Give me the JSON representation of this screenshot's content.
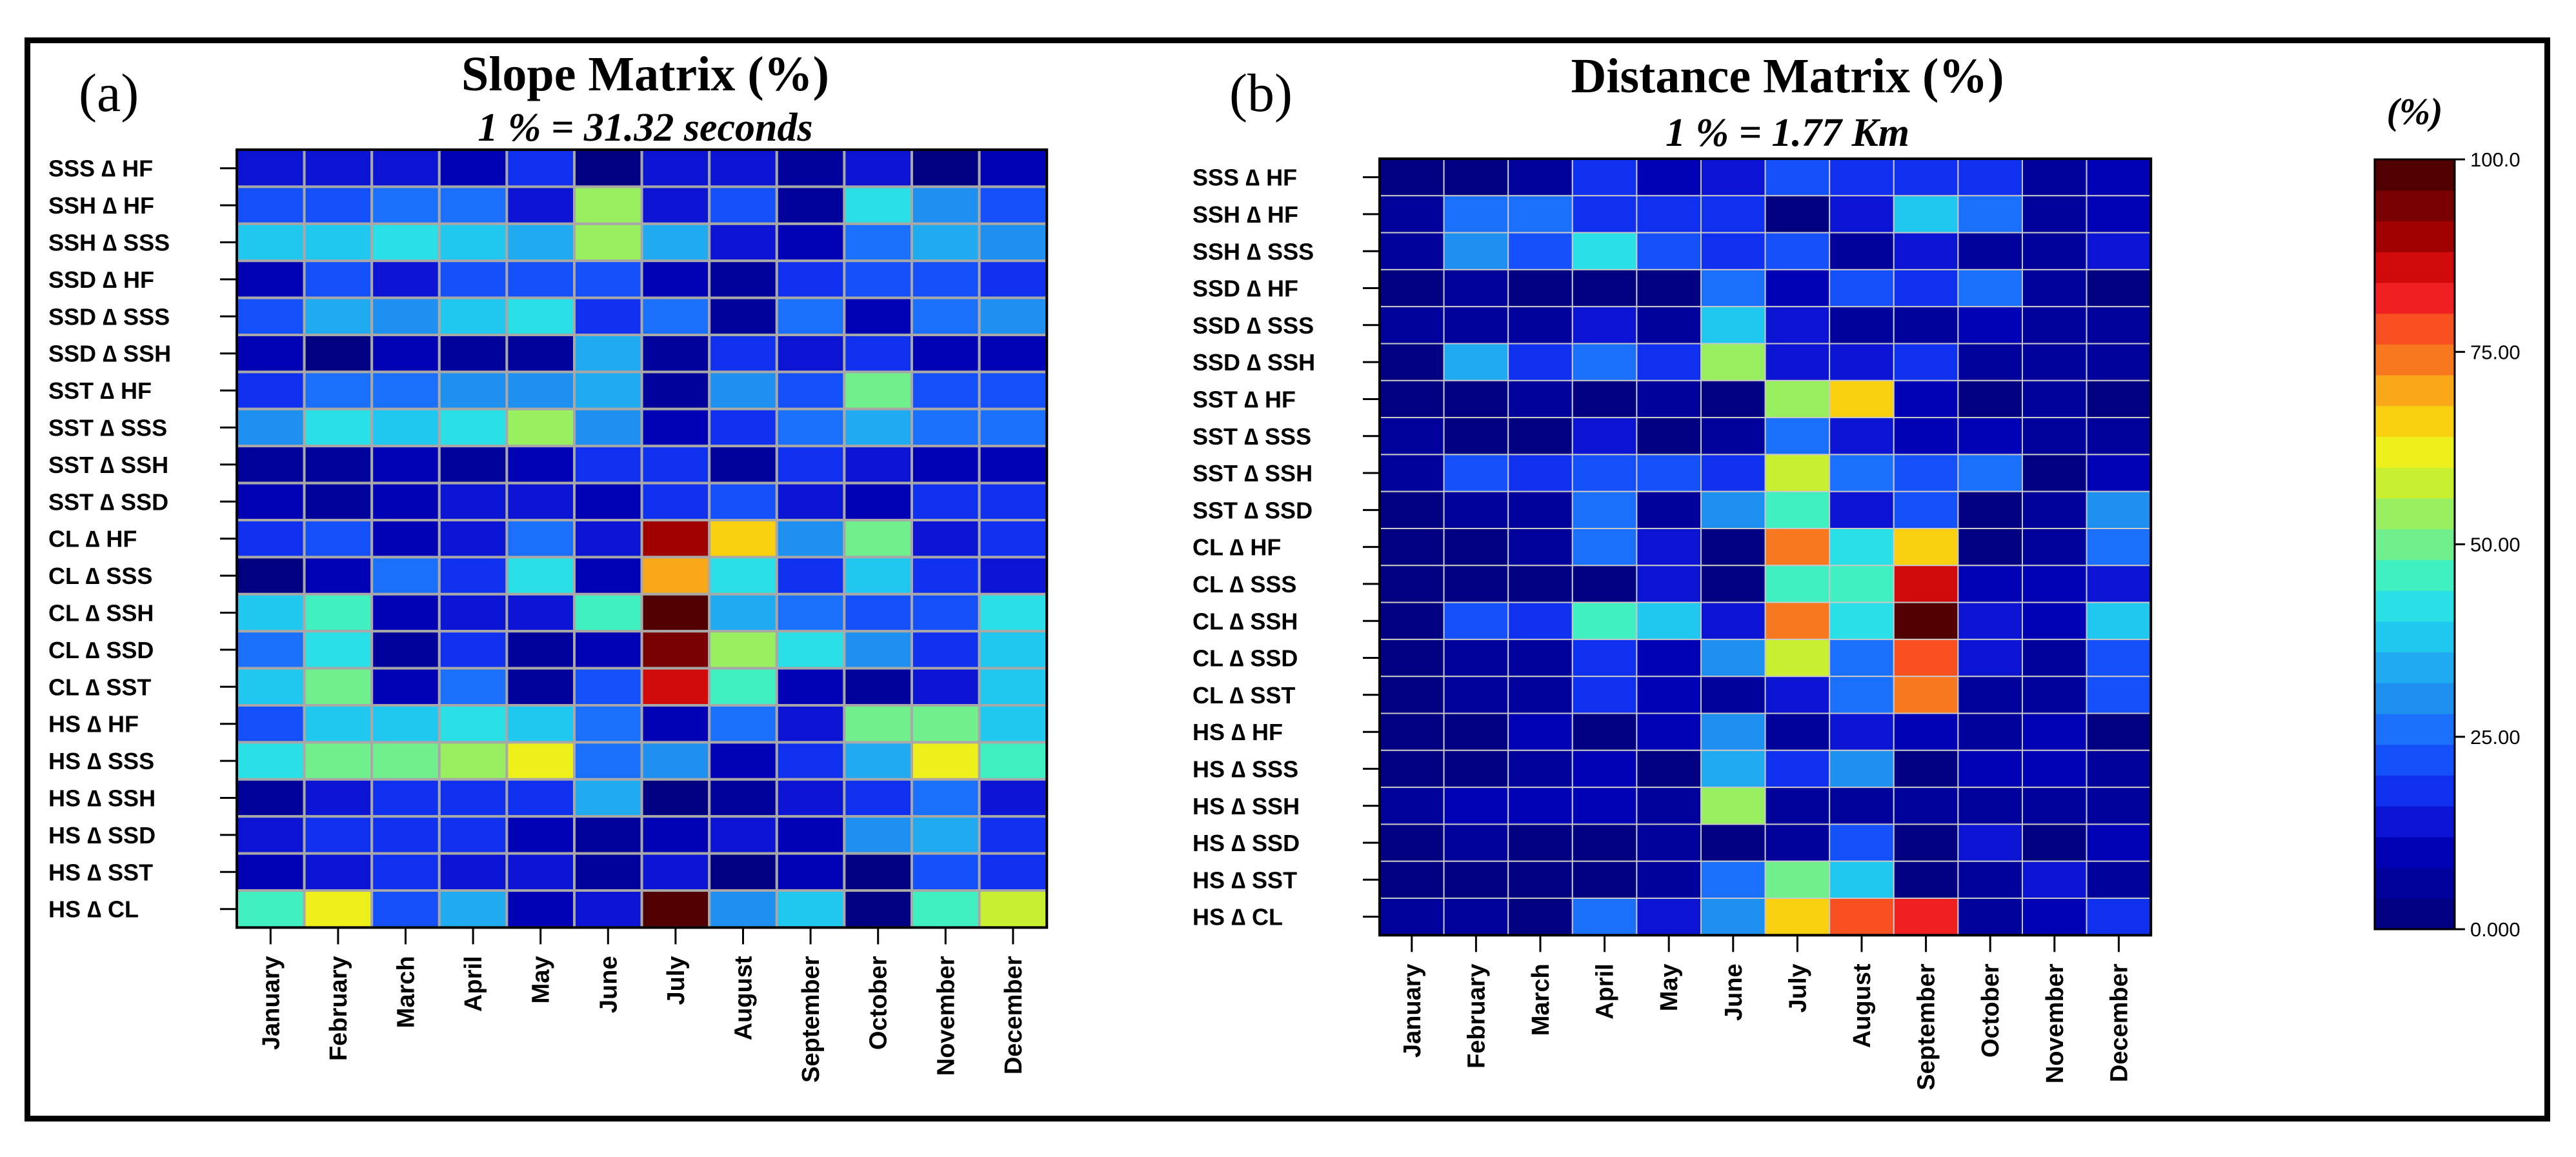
{
  "colorbar": {
    "unit_label": "(%)",
    "ticks": [
      {
        "label": "100.0",
        "value": 100
      },
      {
        "label": "75.00",
        "value": 75
      },
      {
        "label": "50.00",
        "value": 50
      },
      {
        "label": "25.00",
        "value": 25
      },
      {
        "label": "0.000",
        "value": 0
      }
    ],
    "range": [
      0,
      100
    ],
    "colors": [
      "#000080",
      "#00009b",
      "#0000b4",
      "#0a14d2",
      "#1030f0",
      "#1450fa",
      "#1a70fa",
      "#1e90f0",
      "#20aaf0",
      "#20c8f0",
      "#28e0e6",
      "#40f0c0",
      "#70f08c",
      "#98f060",
      "#c8f030",
      "#eef01c",
      "#f8d010",
      "#f8a818",
      "#f87820",
      "#f85020",
      "#f02020",
      "#d00a0a",
      "#a00000",
      "#780000",
      "#500000"
    ]
  },
  "chart_data": [
    {
      "type": "heatmap",
      "panel_label": "(a)",
      "title": "Slope Matrix (%)",
      "subtitle": "1 % = 31.32 seconds",
      "rows": [
        "SSS ∆ HF",
        "SSH ∆ HF",
        "SSH ∆ SSS",
        "SSD ∆ HF",
        "SSD ∆ SSS",
        "SSD ∆ SSH",
        "SST ∆ HF",
        "SST ∆ SSS",
        "SST ∆ SSH",
        "SST ∆ SSD",
        "CL ∆ HF",
        "CL ∆ SSS",
        "CL ∆ SSH",
        "CL ∆ SSD",
        "CL ∆ SST",
        "HS ∆ HF",
        "HS ∆ SSS",
        "HS ∆ SSH",
        "HS ∆ SSD",
        "HS ∆ SST",
        "HS ∆ CL"
      ],
      "columns": [
        "January",
        "February",
        "March",
        "April",
        "May",
        "June",
        "July",
        "August",
        "September",
        "October",
        "November",
        "December"
      ],
      "values": [
        [
          15,
          14,
          14,
          11,
          17,
          3,
          15,
          15,
          7,
          14,
          3,
          9
        ],
        [
          23,
          22,
          24,
          27,
          13,
          55,
          13,
          21,
          4,
          40,
          30,
          22
        ],
        [
          37,
          36,
          40,
          38,
          35,
          55,
          32,
          15,
          9,
          27,
          33,
          31
        ],
        [
          8,
          21,
          15,
          23,
          23,
          22,
          9,
          7,
          16,
          23,
          22,
          18
        ],
        [
          20,
          35,
          30,
          37,
          41,
          19,
          24,
          6,
          25,
          8,
          25,
          28
        ],
        [
          11,
          2,
          8,
          4,
          7,
          35,
          7,
          19,
          15,
          16,
          10,
          8
        ],
        [
          19,
          27,
          24,
          31,
          31,
          35,
          7,
          29,
          21,
          51,
          23,
          23
        ],
        [
          30,
          40,
          36,
          40,
          52,
          31,
          11,
          19,
          25,
          34,
          27,
          25
        ],
        [
          7,
          4,
          8,
          6,
          10,
          16,
          16,
          7,
          18,
          12,
          8,
          11
        ],
        [
          9,
          6,
          8,
          14,
          13,
          11,
          19,
          21,
          15,
          11,
          17,
          18
        ],
        [
          16,
          22,
          10,
          13,
          25,
          12,
          88,
          66,
          28,
          51,
          12,
          16
        ],
        [
          2,
          10,
          26,
          19,
          43,
          11,
          70,
          43,
          17,
          37,
          18,
          15
        ],
        [
          38,
          45,
          8,
          12,
          12,
          45,
          97,
          33,
          24,
          20,
          23,
          40
        ],
        [
          26,
          43,
          5,
          16,
          5,
          11,
          93,
          52,
          42,
          30,
          17,
          38
        ],
        [
          36,
          49,
          9,
          24,
          4,
          20,
          84,
          44,
          10,
          4,
          14,
          37
        ],
        [
          22,
          36,
          37,
          41,
          37,
          25,
          11,
          25,
          14,
          48,
          50,
          38
        ],
        [
          40,
          48,
          48,
          55,
          62,
          25,
          29,
          11,
          19,
          34,
          62,
          45
        ],
        [
          7,
          13,
          16,
          16,
          16,
          32,
          3,
          6,
          13,
          18,
          24,
          14
        ],
        [
          15,
          17,
          16,
          19,
          11,
          4,
          8,
          14,
          11,
          29,
          33,
          18
        ],
        [
          10,
          13,
          16,
          15,
          12,
          6,
          14,
          3,
          9,
          3,
          22,
          18
        ],
        [
          46,
          63,
          23,
          35,
          10,
          13,
          98,
          30,
          37,
          3,
          44,
          56
        ]
      ]
    },
    {
      "type": "heatmap",
      "panel_label": "(b)",
      "title": "Distance Matrix (%)",
      "subtitle": "1 % = 1.77 Km",
      "rows": [
        "SSS ∆ HF",
        "SSH ∆ HF",
        "SSH ∆ SSS",
        "SSD ∆ HF",
        "SSD ∆ SSS",
        "SSD ∆ SSH",
        "SST ∆ HF",
        "SST ∆ SSS",
        "SST ∆ SSH",
        "SST ∆ SSD",
        "CL ∆ HF",
        "CL ∆ SSS",
        "CL ∆ SSH",
        "CL ∆ SSD",
        "CL ∆ SST",
        "HS ∆ HF",
        "HS ∆ SSS",
        "HS ∆ SSH",
        "HS ∆ SSD",
        "HS ∆ SST",
        "HS ∆ CL"
      ],
      "columns": [
        "January",
        "February",
        "March",
        "April",
        "May",
        "June",
        "July",
        "August",
        "September",
        "October",
        "November",
        "December"
      ],
      "values": [
        [
          3,
          3,
          5,
          17,
          9,
          12,
          20,
          17,
          18,
          18,
          6,
          8
        ],
        [
          7,
          27,
          25,
          19,
          19,
          18,
          2,
          14,
          38,
          24,
          6,
          8
        ],
        [
          7,
          29,
          22,
          41,
          20,
          16,
          22,
          6,
          15,
          5,
          5,
          13
        ],
        [
          3,
          5,
          3,
          2,
          2,
          24,
          11,
          23,
          16,
          26,
          4,
          3
        ],
        [
          4,
          5,
          7,
          14,
          4,
          36,
          12,
          6,
          4,
          10,
          6,
          6
        ],
        [
          3,
          33,
          17,
          24,
          18,
          52,
          13,
          13,
          18,
          4,
          4,
          6
        ],
        [
          2,
          2,
          4,
          3,
          4,
          2,
          52,
          64,
          11,
          3,
          4,
          2
        ],
        [
          4,
          3,
          3,
          14,
          3,
          6,
          25,
          13,
          10,
          11,
          4,
          6
        ],
        [
          4,
          23,
          16,
          23,
          21,
          19,
          57,
          27,
          23,
          25,
          3,
          9
        ],
        [
          2,
          4,
          6,
          25,
          7,
          29,
          46,
          14,
          23,
          3,
          5,
          28
        ],
        [
          3,
          3,
          6,
          24,
          12,
          3,
          72,
          40,
          66,
          3,
          7,
          24
        ],
        [
          3,
          3,
          3,
          3,
          14,
          3,
          45,
          47,
          84,
          11,
          8,
          13
        ],
        [
          3,
          23,
          16,
          45,
          38,
          15,
          74,
          40,
          99,
          14,
          8,
          36
        ],
        [
          3,
          5,
          5,
          16,
          11,
          30,
          57,
          24,
          78,
          12,
          6,
          22
        ],
        [
          3,
          4,
          5,
          17,
          11,
          5,
          13,
          24,
          75,
          5,
          7,
          21
        ],
        [
          3,
          3,
          8,
          3,
          8,
          29,
          4,
          13,
          9,
          6,
          9,
          3
        ],
        [
          3,
          3,
          4,
          11,
          3,
          35,
          16,
          28,
          3,
          9,
          9,
          5
        ],
        [
          5,
          8,
          10,
          8,
          4,
          52,
          5,
          7,
          5,
          7,
          6,
          7
        ],
        [
          3,
          4,
          3,
          3,
          4,
          3,
          6,
          21,
          3,
          12,
          3,
          9
        ],
        [
          3,
          3,
          3,
          3,
          4,
          25,
          50,
          38,
          3,
          6,
          12,
          5
        ],
        [
          7,
          4,
          3,
          25,
          14,
          31,
          66,
          78,
          82,
          4,
          8,
          19
        ]
      ]
    }
  ]
}
